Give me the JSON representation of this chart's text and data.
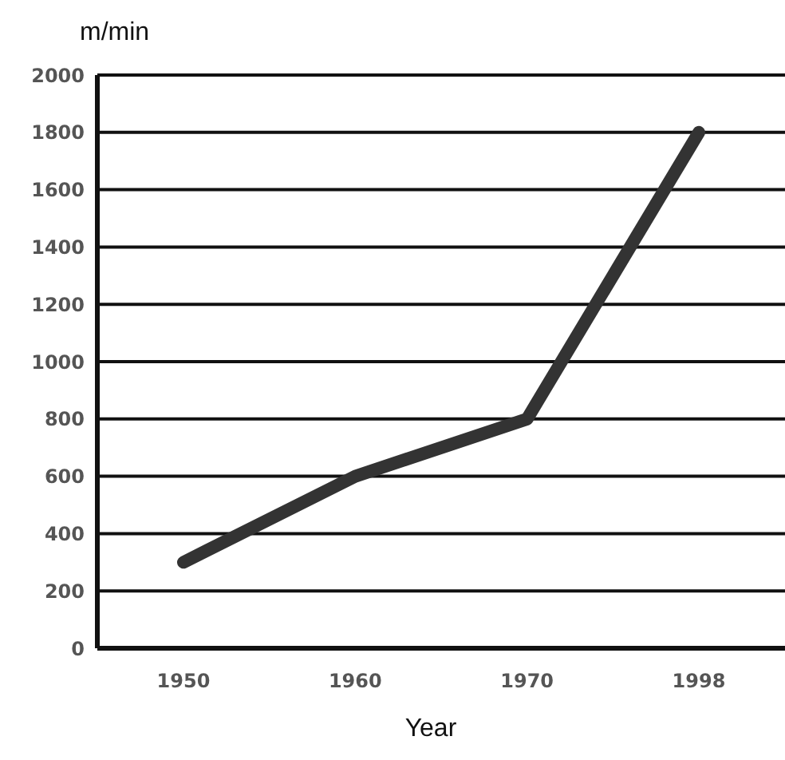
{
  "chart_data": {
    "type": "line",
    "ylabel": "m/min",
    "xlabel": "Year",
    "categories": [
      "1950",
      "1960",
      "1970",
      "1998"
    ],
    "series": [
      {
        "color": "#333333",
        "values": [
          300,
          600,
          800,
          1800
        ]
      }
    ],
    "ylim": [
      0,
      2000
    ],
    "yticks": [
      0,
      200,
      400,
      600,
      800,
      1000,
      1200,
      1400,
      1600,
      1800,
      2000
    ],
    "grid": "y",
    "marker": "none",
    "line_style": "solid",
    "legend": false
  }
}
